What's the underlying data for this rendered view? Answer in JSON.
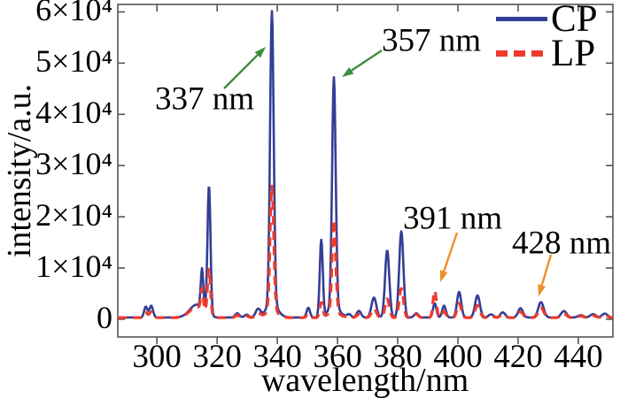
{
  "chart_data": {
    "type": "line",
    "title": "",
    "xlabel": "wavelength/nm",
    "ylabel": "intensity/a.u.",
    "xlim": [
      287.0,
      451.5
    ],
    "ylim": [
      -3460,
      61460
    ],
    "grid": false,
    "legend_position": "top-right-inside",
    "xticks": [
      300,
      320,
      340,
      360,
      380,
      400,
      420,
      440
    ],
    "yticks": [
      {
        "value": 0,
        "label": "0"
      },
      {
        "value": 10000,
        "label": "1×10⁴"
      },
      {
        "value": 20000,
        "label": "2×10⁴"
      },
      {
        "value": 30000,
        "label": "3×10⁴"
      },
      {
        "value": 40000,
        "label": "4×10⁴"
      },
      {
        "value": 50000,
        "label": "5×10⁴"
      },
      {
        "value": 60000,
        "label": "6×10⁴"
      }
    ],
    "series": [
      {
        "name": "CP",
        "color": "#343e96",
        "line_style": "solid"
      },
      {
        "name": "LP",
        "color": "#ee3b2b",
        "line_style": "dashed"
      }
    ],
    "baseline": {
      "CP": 350,
      "LP": 300
    },
    "peaks": [
      {
        "nm": 296.3,
        "sigma": 0.55,
        "CP": 2100,
        "LP": 1000
      },
      {
        "nm": 298.1,
        "sigma": 0.6,
        "CP": 2300,
        "LP": 1150
      },
      {
        "nm": 313.2,
        "sigma": 2.3,
        "CP": 2500,
        "LP": 2100
      },
      {
        "nm": 315.0,
        "sigma": 0.42,
        "CP": 7800,
        "LP": 4300
      },
      {
        "nm": 317.3,
        "sigma": 0.5,
        "CP": 25300,
        "LP": 9200
      },
      {
        "nm": 326.7,
        "sigma": 0.7,
        "CP": 800,
        "LP": 450
      },
      {
        "nm": 329.8,
        "sigma": 0.7,
        "CP": 550,
        "LP": 320
      },
      {
        "nm": 333.6,
        "sigma": 0.8,
        "CP": 1600,
        "LP": 850
      },
      {
        "nm": 338.2,
        "sigma": 0.6,
        "CP": 57200,
        "LP": 24200
      },
      {
        "nm": 338.2,
        "sigma": 1.9,
        "CP": 2600,
        "LP": 1500
      },
      {
        "nm": 350.3,
        "sigma": 0.55,
        "CP": 1900,
        "LP": 750
      },
      {
        "nm": 354.6,
        "sigma": 0.5,
        "CP": 15000,
        "LP": 2900
      },
      {
        "nm": 358.8,
        "sigma": 0.6,
        "CP": 44800,
        "LP": 18000
      },
      {
        "nm": 358.8,
        "sigma": 1.9,
        "CP": 2100,
        "LP": 1100
      },
      {
        "nm": 363.8,
        "sigma": 0.7,
        "CP": 600,
        "LP": 350
      },
      {
        "nm": 367.1,
        "sigma": 0.7,
        "CP": 1300,
        "LP": 650
      },
      {
        "nm": 372.1,
        "sigma": 0.8,
        "CP": 3900,
        "LP": 1750
      },
      {
        "nm": 376.5,
        "sigma": 0.7,
        "CP": 13100,
        "LP": 3700
      },
      {
        "nm": 381.2,
        "sigma": 0.7,
        "CP": 16800,
        "LP": 5700
      },
      {
        "nm": 386.2,
        "sigma": 0.7,
        "CP": 800,
        "LP": 650
      },
      {
        "nm": 392.3,
        "sigma": 0.55,
        "CP": 2800,
        "LP": 5300
      },
      {
        "nm": 395.4,
        "sigma": 0.6,
        "CP": 2300,
        "LP": 1250
      },
      {
        "nm": 400.4,
        "sigma": 0.7,
        "CP": 5000,
        "LP": 2800
      },
      {
        "nm": 406.5,
        "sigma": 0.8,
        "CP": 4300,
        "LP": 2400
      },
      {
        "nm": 411.0,
        "sigma": 0.8,
        "CP": 600,
        "LP": 400
      },
      {
        "nm": 414.9,
        "sigma": 0.8,
        "CP": 1000,
        "LP": 650
      },
      {
        "nm": 420.8,
        "sigma": 0.8,
        "CP": 1800,
        "LP": 1150
      },
      {
        "nm": 427.6,
        "sigma": 0.9,
        "CP": 3000,
        "LP": 1950
      },
      {
        "nm": 435.2,
        "sigma": 0.9,
        "CP": 1250,
        "LP": 800
      },
      {
        "nm": 440.8,
        "sigma": 0.9,
        "CP": 450,
        "LP": 320
      },
      {
        "nm": 444.9,
        "sigma": 0.9,
        "CP": 650,
        "LP": 420
      },
      {
        "nm": 448.8,
        "sigma": 0.9,
        "CP": 750,
        "LP": 480
      }
    ],
    "annotations": [
      {
        "label": "337 nm",
        "arrow_color": "#3e8e3d",
        "target_nm": 337
      },
      {
        "label": "357 nm",
        "arrow_color": "#3e8e3d",
        "target_nm": 357
      },
      {
        "label": "391 nm",
        "arrow_color": "#ef8f2a",
        "target_nm": 391
      },
      {
        "label": "428 nm",
        "arrow_color": "#ef8f2a",
        "target_nm": 428
      }
    ],
    "axis_color": "#555555"
  }
}
